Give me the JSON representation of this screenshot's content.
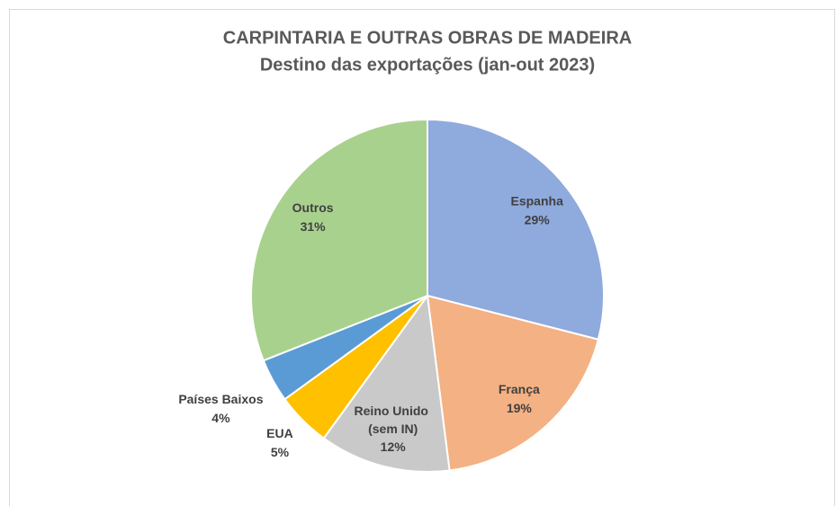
{
  "chart_data": {
    "type": "pie",
    "title": "CARPINTARIA E OUTRAS OBRAS DE MADEIRA",
    "subtitle": "Destino das exportações (jan-out 2023)",
    "categories": [
      "Espanha",
      "França",
      "Reino Unido (sem IN)",
      "EUA",
      "Países Baixos",
      "Outros"
    ],
    "values": [
      29,
      19,
      12,
      5,
      4,
      31
    ],
    "value_labels": [
      "29%",
      "19%",
      "12%",
      "5%",
      "4%",
      "31%"
    ],
    "colors": [
      "#8faadc",
      "#f4b183",
      "#c9c9c9",
      "#ffc000",
      "#5b9bd5",
      "#a9d18e"
    ]
  }
}
